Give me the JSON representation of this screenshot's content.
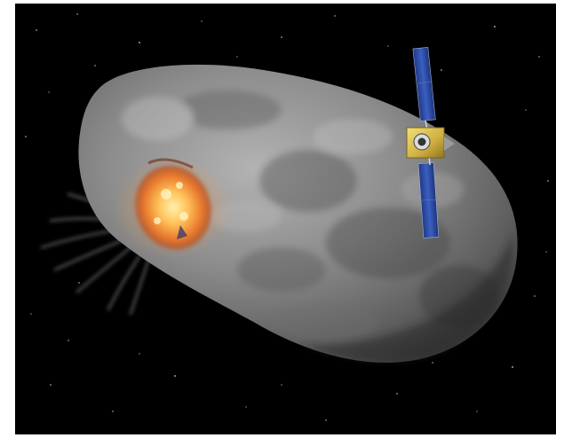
{
  "scene": {
    "subjects": [
      "asteroid",
      "impact-explosion",
      "spacecraft"
    ],
    "colors": {
      "background": "#ffffff",
      "space": "#000000",
      "asteroid_light": "#a8a8a8",
      "asteroid_dark": "#4a4a4a",
      "explosion_core": "#ffe28a",
      "explosion_mid": "#f59a3a",
      "explosion_edge": "#b8461c",
      "solar_panel": "#2f4fa8",
      "spacecraft_body": "#d9c25a"
    }
  }
}
